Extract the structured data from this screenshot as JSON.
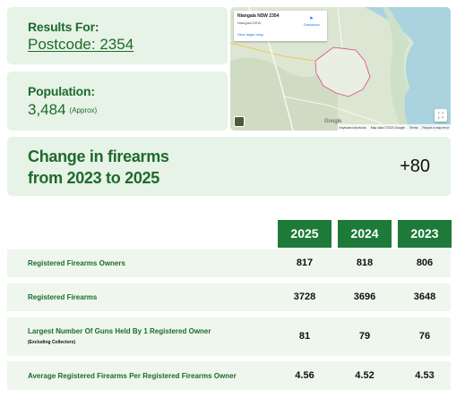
{
  "results": {
    "label": "Results For:",
    "postcode": "Postcode: 2354"
  },
  "population": {
    "label": "Population:",
    "value": "3,484",
    "note": "(Approx)"
  },
  "map": {
    "place": "Niangala NSW 2354",
    "subtitle": "Niangala NSW",
    "view_larger": "View larger map",
    "directions": "Directions",
    "logo": "Google",
    "footer": [
      "Keyboard shortcuts",
      "Map data ©2023 Google",
      "Terms",
      "Report a map error"
    ]
  },
  "change": {
    "title_line1": "Change in firearms",
    "title_line2": "from 2023 to 2025",
    "delta": "+80"
  },
  "table": {
    "years": [
      "2025",
      "2024",
      "2023"
    ],
    "rows": [
      {
        "name": "Registered Firearms Owners",
        "sub": "",
        "values": [
          "817",
          "818",
          "806"
        ]
      },
      {
        "name": "Registered Firearms",
        "sub": "",
        "values": [
          "3728",
          "3696",
          "3648"
        ]
      },
      {
        "name": "Largest Number Of Guns Held By 1 Registered Owner",
        "sub": "(Excluding Collectors)",
        "values": [
          "81",
          "79",
          "76"
        ]
      },
      {
        "name": "Average Registered Firearms Per Registered Firearms Owner",
        "sub": "",
        "values": [
          "4.56",
          "4.52",
          "4.53"
        ]
      }
    ]
  },
  "colors": {
    "card_bg": "#e6f3e6",
    "accent_green": "#1e7a38",
    "text_green": "#1e6a2c",
    "row_bg": "#eef6ee"
  }
}
